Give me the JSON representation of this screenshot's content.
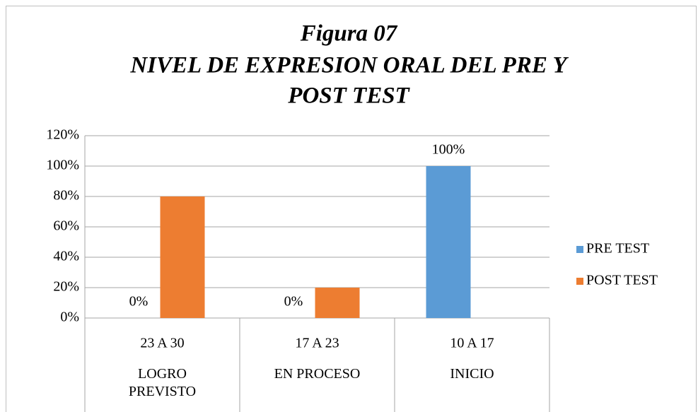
{
  "chart_data": {
    "type": "bar",
    "title": [
      "Figura 07",
      "NIVEL DE EXPRESION ORAL DEL PRE Y",
      "POST TEST"
    ],
    "categories": [
      "23 A 30",
      "17 A 23",
      "10 A 17"
    ],
    "category_groups": [
      "LOGRO PREVISTO",
      "EN PROCESO",
      "INICIO"
    ],
    "series": [
      {
        "name": "PRE TEST",
        "color": "#5b9bd5",
        "values": [
          0,
          0,
          100
        ],
        "value_labels": [
          "0%",
          "0%",
          "100%"
        ]
      },
      {
        "name": "POST TEST",
        "color": "#ed7d31",
        "values": [
          80,
          20,
          0
        ]
      }
    ],
    "ylim": [
      0,
      120
    ],
    "yticks": [
      {
        "value": 0,
        "label": "0%"
      },
      {
        "value": 20,
        "label": "20%"
      },
      {
        "value": 40,
        "label": "40%"
      },
      {
        "value": 60,
        "label": "60%"
      },
      {
        "value": 80,
        "label": "80%"
      },
      {
        "value": 100,
        "label": "100%"
      },
      {
        "value": 120,
        "label": "120%"
      }
    ],
    "grid": true,
    "legend": "right"
  }
}
